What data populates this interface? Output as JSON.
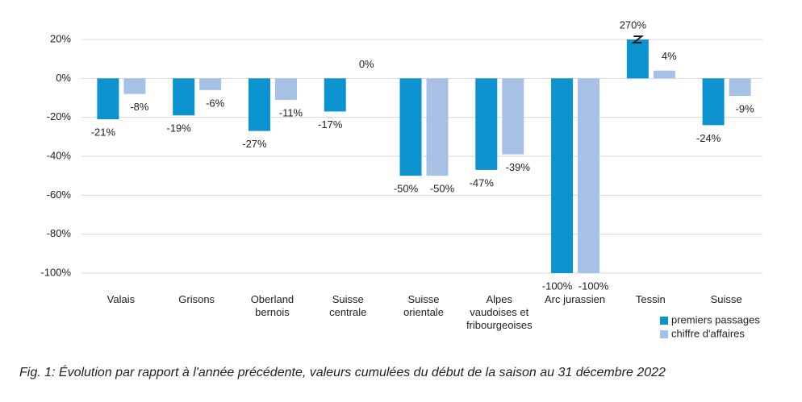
{
  "chart_data": {
    "type": "bar",
    "caption": "Fig. 1: Évolution par rapport à l'année précédente, valeurs cumulées du début de la saison au 31 décembre 2022",
    "categories": [
      "Valais",
      "Grisons",
      "Oberland\nbernois",
      "Suisse\ncentrale",
      "Suisse\norientale",
      "Alpes\nvaudoises et\nfribourgeoises",
      "Arc jurassien",
      "Tessin",
      "Suisse"
    ],
    "series": [
      {
        "name": "premiers passages",
        "color": "#0b93d0",
        "values": [
          -21,
          -19,
          -27,
          -17,
          -50,
          -47,
          -100,
          270,
          -24
        ],
        "value_labels": [
          "-21%",
          "-19%",
          "-27%",
          "-17%",
          "-50%",
          "-47%",
          "-100%",
          "270%",
          "-24%"
        ]
      },
      {
        "name": "chiffre d'affaires",
        "color": "#a6c1e5",
        "values": [
          -8,
          -6,
          -11,
          0,
          -50,
          -39,
          -100,
          4,
          -9
        ],
        "value_labels": [
          "-8%",
          "-6%",
          "-11%",
          "0%",
          "-50%",
          "-39%",
          "-100%",
          "4%",
          "-9%"
        ]
      }
    ],
    "ylim": [
      -100,
      20
    ],
    "yticks": [
      {
        "value": -100,
        "label": "-100%"
      },
      {
        "value": -80,
        "label": "-80%"
      },
      {
        "value": -60,
        "label": "-60%"
      },
      {
        "value": -40,
        "label": "-40%"
      },
      {
        "value": -20,
        "label": "-20%"
      },
      {
        "value": 0,
        "label": "0%"
      },
      {
        "value": 20,
        "label": "20%"
      }
    ],
    "grid": true,
    "legend": "bottom-right"
  }
}
